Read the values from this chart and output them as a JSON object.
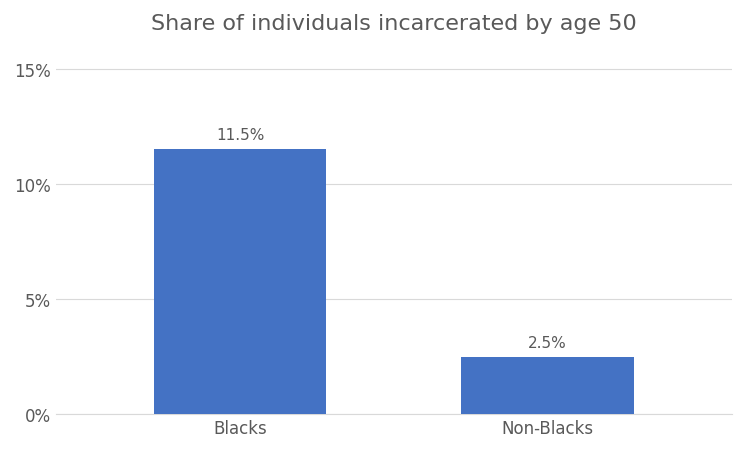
{
  "title": "Share of individuals incarcerated by age 50",
  "categories": [
    "Blacks",
    "Non-Blacks"
  ],
  "values": [
    0.115,
    0.025
  ],
  "labels": [
    "11.5%",
    "2.5%"
  ],
  "bar_color": "#4472C4",
  "ylim": [
    0,
    0.16
  ],
  "yticks": [
    0.0,
    0.05,
    0.1,
    0.15
  ],
  "ytick_labels": [
    "0%",
    "5%",
    "10%",
    "15%"
  ],
  "background_color": "#ffffff",
  "title_fontsize": 16,
  "label_fontsize": 11,
  "tick_fontsize": 12,
  "bar_width": 0.28,
  "grid_color": "#d9d9d9",
  "text_color": "#595959"
}
